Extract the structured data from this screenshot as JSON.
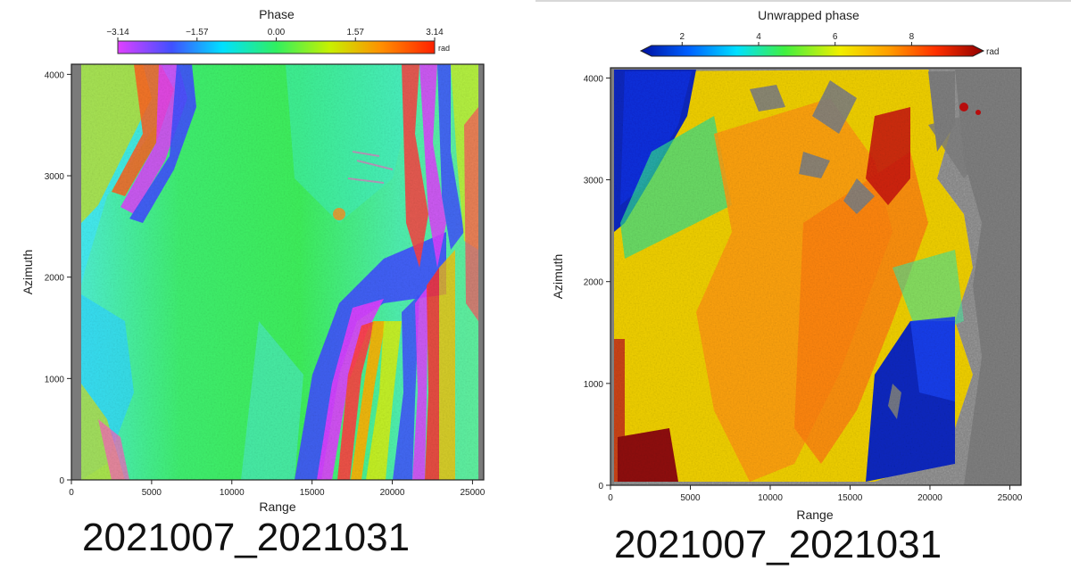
{
  "chart_data": [
    {
      "type": "heatmap",
      "title": "Phase",
      "colorbar": {
        "ticks": [
          "−3.14",
          "−1.57",
          "0.00",
          "1.57",
          "3.14"
        ],
        "values": [
          -3.14,
          -1.57,
          0.0,
          1.57,
          3.14
        ],
        "unit": "rad",
        "colors": [
          "#e040ff",
          "#4050ff",
          "#00e0ff",
          "#30f060",
          "#c8f000",
          "#ff9000",
          "#ff2000"
        ]
      },
      "xlabel": "Range",
      "ylabel": "Azimuth",
      "xticks": [
        "0",
        "5000",
        "10000",
        "15000",
        "20000",
        "25000"
      ],
      "yticks": [
        "0",
        "1000",
        "2000",
        "3000",
        "4000"
      ],
      "xlim": [
        0,
        25700
      ],
      "ylim": [
        0,
        4100
      ],
      "caption": "2021007_2021031"
    },
    {
      "type": "heatmap",
      "title": "Unwrapped phase",
      "colorbar": {
        "ticks": [
          "2",
          "4",
          "6",
          "8"
        ],
        "values": [
          2,
          4,
          6,
          8
        ],
        "unit": "rad",
        "colors": [
          "#0010a0",
          "#0060ff",
          "#00e0ff",
          "#40f040",
          "#f0f000",
          "#ffa000",
          "#ff3000",
          "#900000"
        ]
      },
      "xlabel": "Range",
      "ylabel": "Azimuth",
      "xticks": [
        "0",
        "5000",
        "10000",
        "15000",
        "20000",
        "25000"
      ],
      "yticks": [
        "0",
        "1000",
        "2000",
        "3000",
        "4000"
      ],
      "xlim": [
        0,
        25700
      ],
      "ylim": [
        0,
        4100
      ],
      "caption": "2021007_2021031"
    }
  ]
}
